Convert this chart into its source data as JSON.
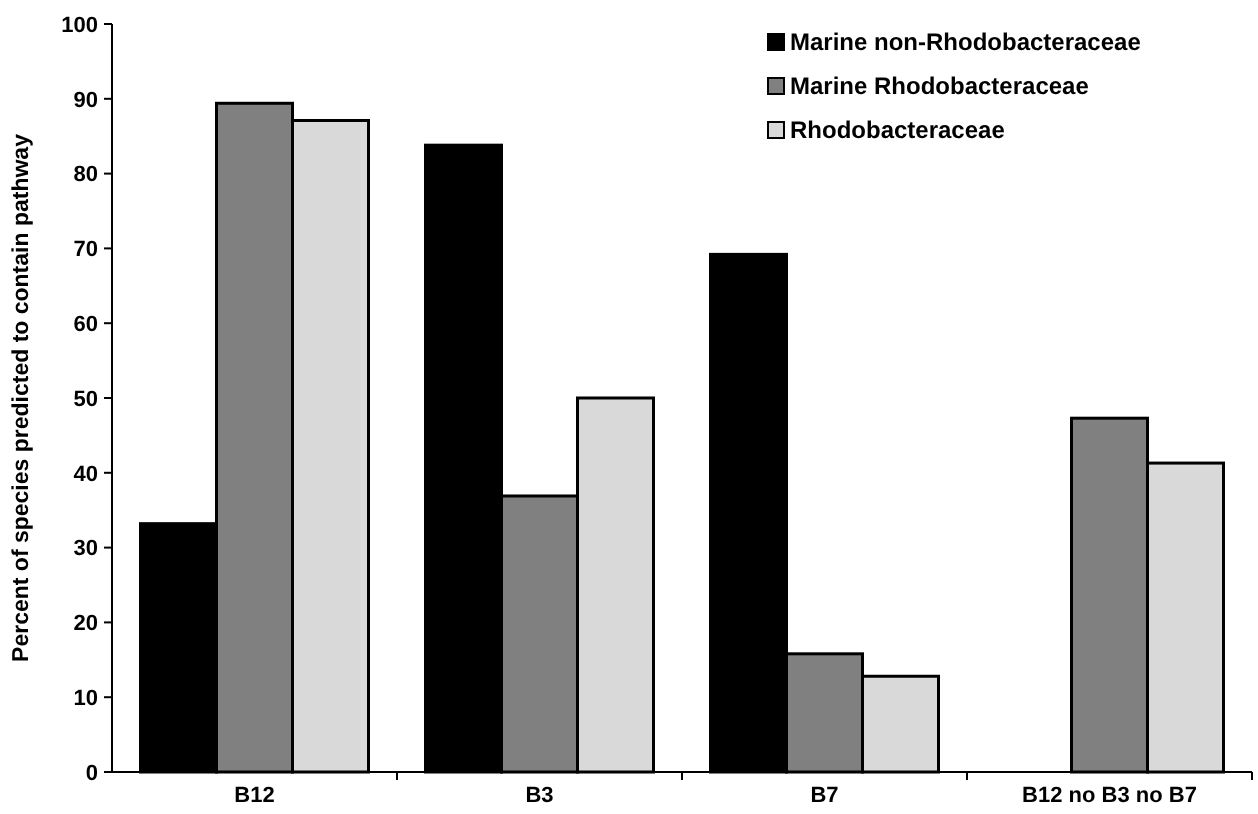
{
  "chart_data": {
    "type": "bar",
    "ylabel": "Percent of species predicted to contain pathway",
    "categories": [
      "B12",
      "B3",
      "B7",
      "B12 no B3 no B7"
    ],
    "series": [
      {
        "name": "Marine non-Rhodobacteraceae",
        "color": "#000000",
        "values": [
          33.2,
          83.8,
          69.2,
          0
        ]
      },
      {
        "name": "Marine Rhodobacteraceae",
        "color": "#808080",
        "values": [
          89.4,
          36.9,
          15.8,
          47.3
        ]
      },
      {
        "name": "Rhodobacteraceae",
        "color": "#d9d9d9",
        "values": [
          87.1,
          50,
          12.8,
          41.3
        ]
      }
    ],
    "ylim": [
      0,
      100
    ],
    "yticks": [
      0,
      10,
      20,
      30,
      40,
      50,
      60,
      70,
      80,
      90,
      100
    ],
    "grid": false,
    "legend": "top right"
  }
}
